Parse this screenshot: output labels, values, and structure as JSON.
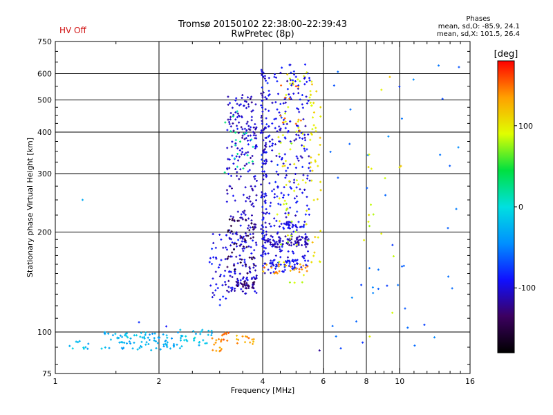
{
  "header": {
    "title": "Tromsø 20150102 22:38:00–22:39:43",
    "subtitle": "RwPretec (8p)",
    "status": "HV Off",
    "status_color": "#d01010"
  },
  "phases": {
    "heading": "Phases",
    "line_o": "mean, sd,O: -85.9, 24.1",
    "line_x": "mean, sd,X: 101.5, 26.4"
  },
  "chart_data": {
    "type": "scatter",
    "title": "Tromsø 20150102 22:38:00–22:39:43",
    "subtitle": "RwPretec (8p)",
    "xlabel": "Frequency [MHz]",
    "ylabel": "Stationary phase Virtual Height [km]",
    "x_scale": "log",
    "y_scale": "log",
    "xlim": [
      1,
      16
    ],
    "ylim": [
      75,
      750
    ],
    "x_ticks": [
      1,
      2,
      4,
      6,
      8,
      10,
      16
    ],
    "y_ticks": [
      75,
      100,
      200,
      300,
      400,
      500,
      600,
      750
    ],
    "grid": true,
    "colorbar": {
      "label": "[deg]",
      "range": [
        -180,
        180
      ],
      "ticks": [
        100,
        0,
        -100
      ],
      "colors": [
        "#000000",
        "#3c0060",
        "#1010ff",
        "#0090ff",
        "#00e0e0",
        "#00e040",
        "#e0ff00",
        "#ffa000",
        "#ff0000"
      ]
    },
    "clusters": [
      {
        "x": [
          1.08,
          1.28
        ],
        "y": [
          88,
          94
        ],
        "phase": -25,
        "n": 10
      },
      {
        "x": [
          1.36,
          2.35
        ],
        "y": [
          88,
          100
        ],
        "phase": -25,
        "n": 90
      },
      {
        "x": [
          2.3,
          2.85
        ],
        "y": [
          91,
          102
        ],
        "phase": -20,
        "n": 25
      },
      {
        "x": [
          2.85,
          3.05
        ],
        "y": [
          87,
          96
        ],
        "phase": 135,
        "n": 14
      },
      {
        "x": [
          3.05,
          3.2
        ],
        "y": [
          94,
          102
        ],
        "phase": 155,
        "n": 8
      },
      {
        "x": [
          3.35,
          3.8
        ],
        "y": [
          92,
          98
        ],
        "phase": 140,
        "n": 14
      },
      {
        "x": [
          2.8,
          3.15
        ],
        "y": [
          120,
          200
        ],
        "phase": -95,
        "n": 40
      },
      {
        "x": [
          3.15,
          3.85
        ],
        "y": [
          130,
          520
        ],
        "phase": -105,
        "n": 300
      },
      {
        "x": [
          3.35,
          3.8
        ],
        "y": [
          135,
          142
        ],
        "phase": -135,
        "n": 30
      },
      {
        "x": [
          3.15,
          3.8
        ],
        "y": [
          150,
          220
        ],
        "phase": -150,
        "n": 40
      },
      {
        "x": [
          3.95,
          4.1
        ],
        "y": [
          150,
          640
        ],
        "phase": -100,
        "n": 120
      },
      {
        "x": [
          4.1,
          5.5
        ],
        "y": [
          150,
          640
        ],
        "phase": -95,
        "n": 260
      },
      {
        "x": [
          4.1,
          5.4
        ],
        "y": [
          180,
          195
        ],
        "phase": -110,
        "n": 80
      },
      {
        "x": [
          4.2,
          5.1
        ],
        "y": [
          155,
          165
        ],
        "phase": -90,
        "n": 40
      },
      {
        "x": [
          4.5,
          5.3
        ],
        "y": [
          205,
          215
        ],
        "phase": -95,
        "n": 30
      },
      {
        "x": [
          4.4,
          5.6
        ],
        "y": [
          140,
          620
        ],
        "phase": 90,
        "n": 70
      },
      {
        "x": [
          4.0,
          5.5
        ],
        "y": [
          150,
          160
        ],
        "phase": 140,
        "n": 24
      },
      {
        "x": [
          4.5,
          5.2
        ],
        "y": [
          400,
          560
        ],
        "phase": 150,
        "n": 12
      },
      {
        "x": [
          5.5,
          5.9
        ],
        "y": [
          160,
          580
        ],
        "phase": 105,
        "n": 40
      },
      {
        "x": [
          3.1,
          3.9
        ],
        "y": [
          300,
          520
        ],
        "phase": 20,
        "n": 20
      },
      {
        "x": [
          6.2,
          15.0
        ],
        "y": [
          80,
          650
        ],
        "phase": -60,
        "n": 45
      },
      {
        "x": [
          7.5,
          10.5
        ],
        "y": [
          90,
          650
        ],
        "phase": 100,
        "n": 18
      }
    ],
    "points": [
      {
        "x": 1.2,
        "y": 250,
        "phase": -30
      },
      {
        "x": 1.75,
        "y": 107,
        "phase": -80
      },
      {
        "x": 2.1,
        "y": 104,
        "phase": -90
      },
      {
        "x": 5.85,
        "y": 88,
        "phase": -120
      }
    ]
  }
}
